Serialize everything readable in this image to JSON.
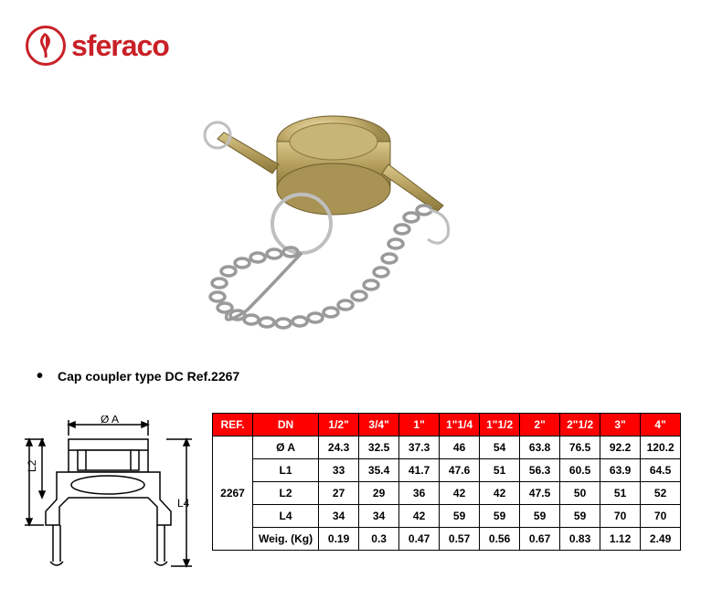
{
  "brand": "sferaco",
  "brand_color": "#c92027",
  "product_title": "Cap coupler type DC Ref.2267",
  "diagram_labels": {
    "oa": "Ø A",
    "l1": "L1",
    "l2": "L2",
    "l4": "L4"
  },
  "table": {
    "header_bg": "#ff0000",
    "header_fg": "#ffffff",
    "border": "#000000",
    "columns": [
      "REF.",
      "DN",
      "1/2\"",
      "3/4\"",
      "1\"",
      "1\"1/4",
      "1\"1/2",
      "2\"",
      "2\"1/2",
      "3\"",
      "4\""
    ],
    "ref_value": "2267",
    "rows": [
      {
        "label": "Ø A",
        "cells": [
          "24.3",
          "32.5",
          "37.3",
          "46",
          "54",
          "63.8",
          "76.5",
          "92.2",
          "120.2"
        ]
      },
      {
        "label": "L1",
        "cells": [
          "33",
          "35.4",
          "41.7",
          "47.6",
          "51",
          "56.3",
          "60.5",
          "63.9",
          "64.5"
        ]
      },
      {
        "label": "L2",
        "cells": [
          "27",
          "29",
          "36",
          "42",
          "42",
          "47.5",
          "50",
          "51",
          "52"
        ]
      },
      {
        "label": "L4",
        "cells": [
          "34",
          "34",
          "42",
          "59",
          "59",
          "59",
          "59",
          "70",
          "70"
        ]
      },
      {
        "label": "Weig. (Kg)",
        "cells": [
          "0.19",
          "0.3",
          "0.47",
          "0.57",
          "0.56",
          "0.67",
          "0.83",
          "1.12",
          "2.49"
        ]
      }
    ]
  }
}
